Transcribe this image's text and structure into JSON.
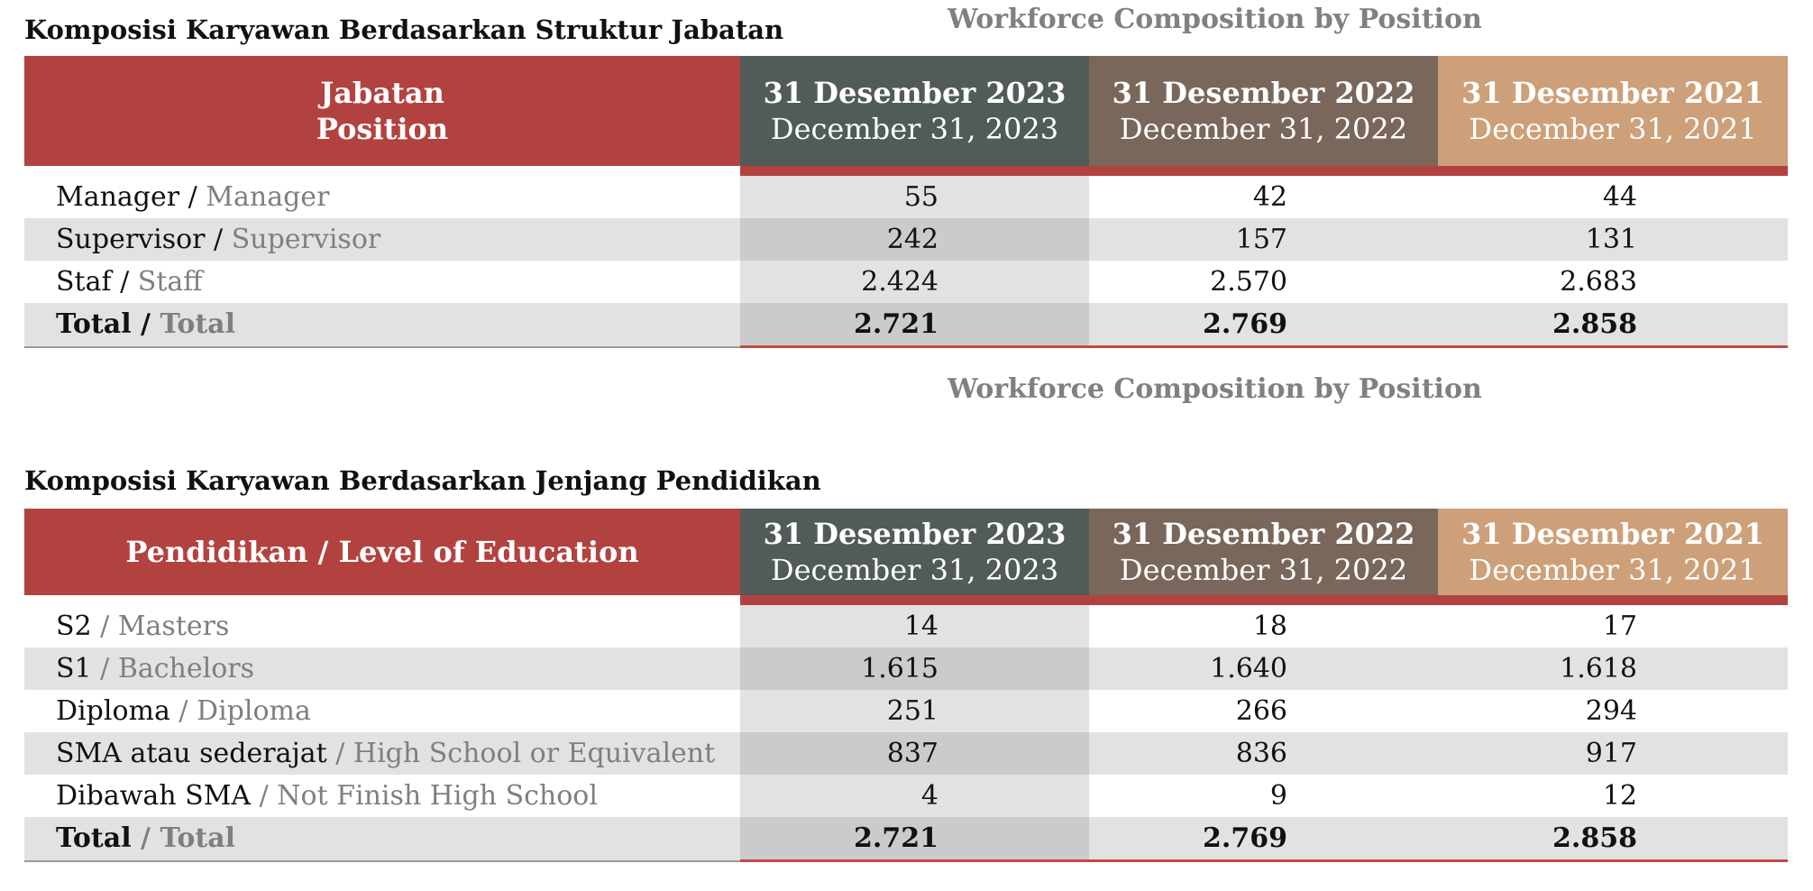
{
  "position_section": {
    "title": "Komposisi Karyawan Berdasarkan Struktur Jabatan",
    "subtitle_en": "Workforce Composition by Position",
    "header": {
      "label_line1": "Jabatan",
      "label_line2": "Position",
      "columns": [
        {
          "id": "Desember 2023",
          "line1": "31 Desember 2023",
          "line2": "December 31, 2023",
          "color": "#515b58"
        },
        {
          "id": "Desember 2022",
          "line1": "31 Desember 2022",
          "line2": "December 31, 2022",
          "color": "#7a675b"
        },
        {
          "id": "Desember 2021",
          "line1": "31 Desember 2021",
          "line2": "December 31, 2021",
          "color": "#cda079"
        }
      ]
    },
    "rows": [
      {
        "id": "Manager",
        "ind": "Manager / ",
        "eng": "Manager",
        "values": [
          "55",
          "42",
          "44"
        ]
      },
      {
        "id": "Supervisor",
        "ind": "Supervisor / ",
        "eng": "Supervisor",
        "values": [
          "242",
          "157",
          "131"
        ]
      },
      {
        "id": "Staf",
        "ind": "Staf / ",
        "eng": "Staff",
        "values": [
          "2.424",
          "2.570",
          "2.683"
        ]
      }
    ],
    "total": {
      "ind": "Total / ",
      "eng": "Total",
      "values": [
        "2.721",
        "2.769",
        "2.858"
      ]
    }
  },
  "between_caption": "Workforce Composition by Position",
  "education_section": {
    "title": "Komposisi Karyawan Berdasarkan Jenjang Pendidikan",
    "header": {
      "label": "Pendidikan / Level of Education",
      "columns": [
        {
          "id": "Desember 2023",
          "line1": "31 Desember 2023",
          "line2": "December 31, 2023",
          "color": "#515b58"
        },
        {
          "id": "Desember 2022",
          "line1": "31 Desember 2022",
          "line2": "December 31, 2022",
          "color": "#7a675b"
        },
        {
          "id": "Desember 2021",
          "line1": "31 Desember 2021",
          "line2": "December 31, 2021",
          "color": "#cda079"
        }
      ]
    },
    "rows": [
      {
        "id": "S2",
        "ind": "S2",
        "eng": " / Masters",
        "values": [
          "14",
          "18",
          "17"
        ]
      },
      {
        "id": "S1",
        "ind": "S1",
        "eng": " / Bachelors",
        "values": [
          "1.615",
          "1.640",
          "1.618"
        ]
      },
      {
        "id": "Diploma",
        "ind": "Diploma",
        "eng": " / Diploma",
        "values": [
          "251",
          "266",
          "294"
        ]
      },
      {
        "id": "SMA",
        "ind": "SMA atau sederajat",
        "eng": " / High School or Equivalent",
        "values": [
          "837",
          "836",
          "917"
        ]
      },
      {
        "id": "Dibawah SMA",
        "ind": "Dibawah SMA",
        "eng": " / Not Finish High School",
        "values": [
          "4",
          "9",
          "12"
        ]
      }
    ],
    "total": {
      "ind": "Total",
      "eng": " / Total",
      "values": [
        "2.721",
        "2.769",
        "2.858"
      ]
    }
  },
  "colors": {
    "accent_red": "#b24240",
    "col_2023": "#515b58",
    "col_2022": "#7a675b",
    "col_2021": "#cda079",
    "muted_text": "#7f7f7f",
    "row_shade": "#e2e2e2"
  }
}
